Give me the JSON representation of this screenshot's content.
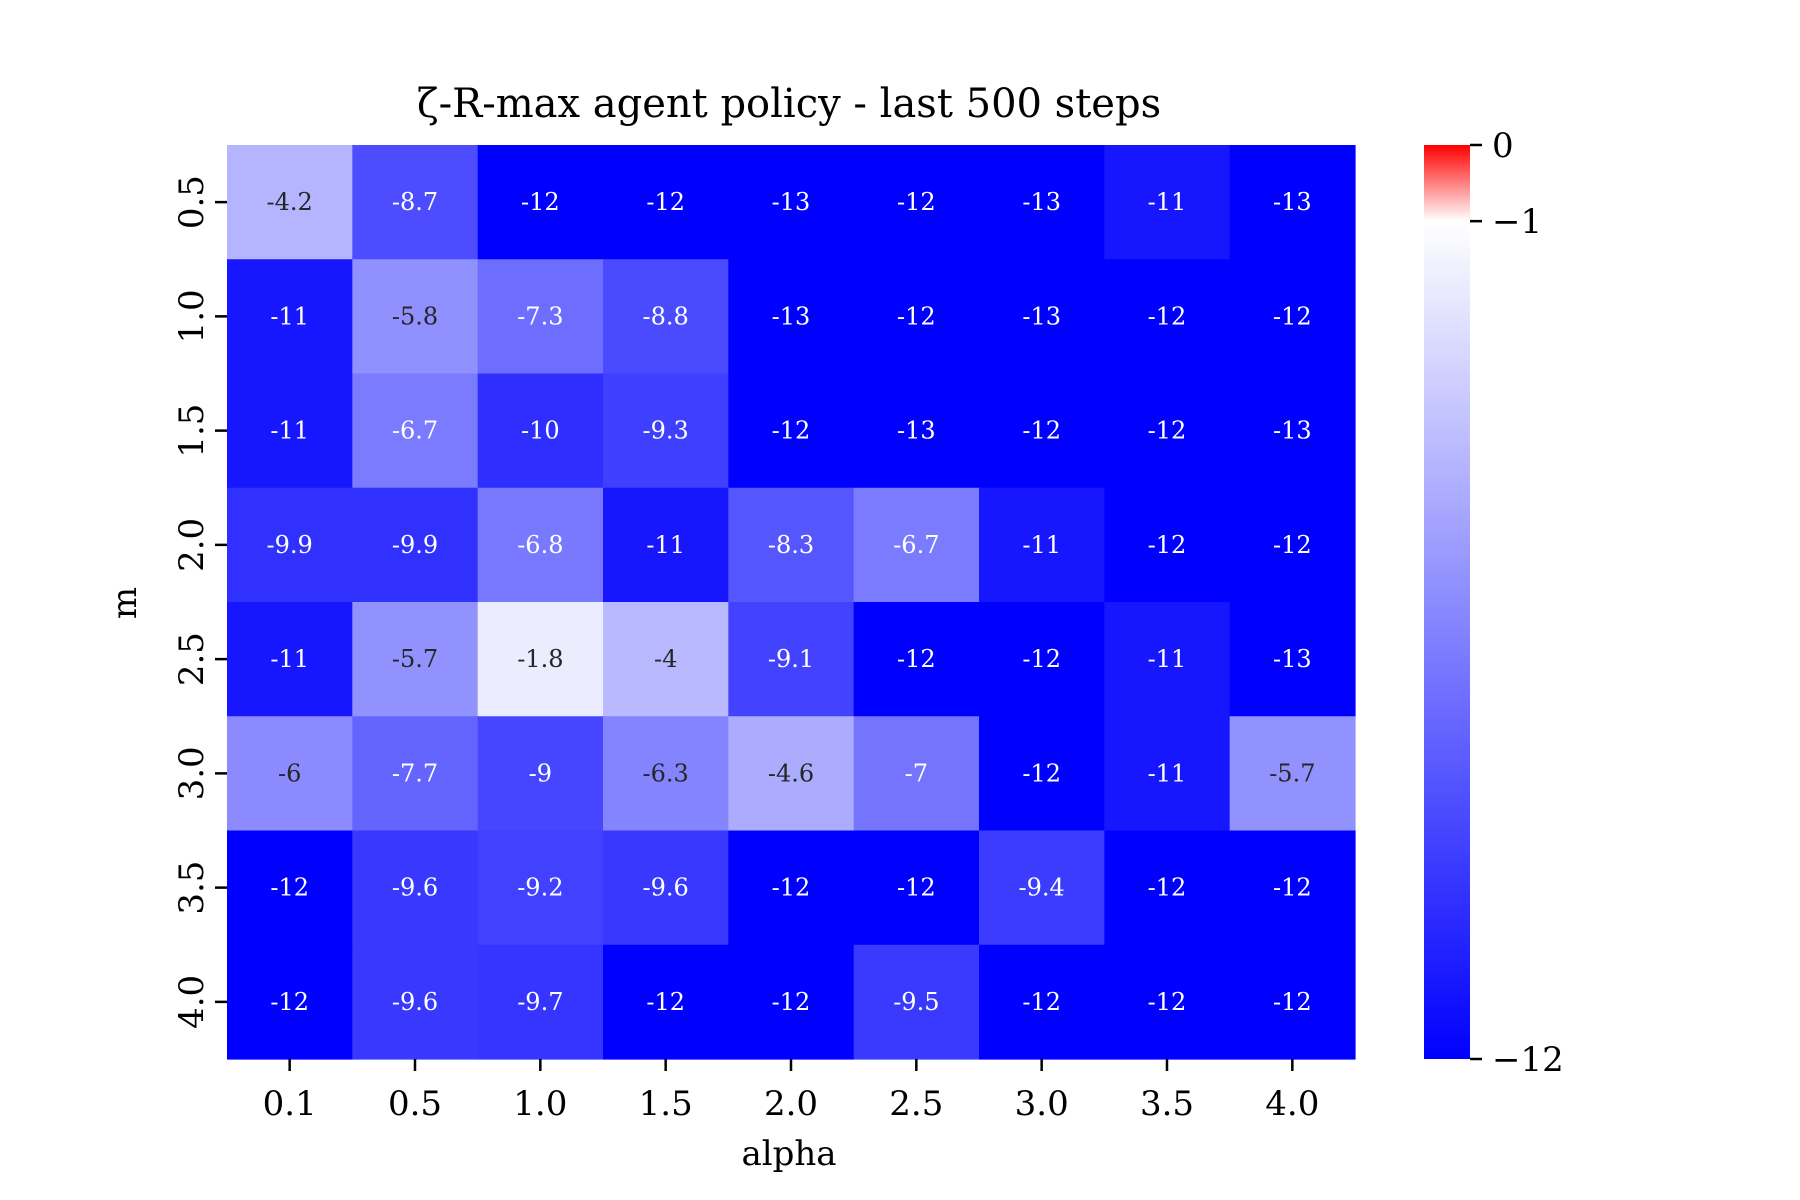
{
  "chart_data": {
    "type": "heatmap",
    "title": "ζ-R-max agent policy - last 500 steps",
    "xlabel": "alpha",
    "ylabel": "m",
    "x_categories": [
      "0.1",
      "0.5",
      "1.0",
      "1.5",
      "2.0",
      "2.5",
      "3.0",
      "3.5",
      "4.0"
    ],
    "y_categories": [
      "0.5",
      "1.0",
      "1.5",
      "2.0",
      "2.5",
      "3.0",
      "3.5",
      "4.0"
    ],
    "values": [
      [
        -4.2,
        -8.7,
        -12,
        -12,
        -13,
        -12,
        -13,
        -11,
        -13
      ],
      [
        -11,
        -5.8,
        -7.3,
        -8.8,
        -13,
        -12,
        -13,
        -12,
        -12
      ],
      [
        -11,
        -6.7,
        -10,
        -9.3,
        -12,
        -13,
        -12,
        -12,
        -13
      ],
      [
        -9.9,
        -9.9,
        -6.8,
        -11,
        -8.3,
        -6.7,
        -11,
        -12,
        -12
      ],
      [
        -11,
        -5.7,
        -1.8,
        -4,
        -9.1,
        -12,
        -12,
        -11,
        -13
      ],
      [
        -6,
        -7.7,
        -9,
        -6.3,
        -4.6,
        -7,
        -12,
        -11,
        -5.7
      ],
      [
        -12,
        -9.6,
        -9.2,
        -9.6,
        -12,
        -12,
        -9.4,
        -12,
        -12
      ],
      [
        -12,
        -9.6,
        -9.7,
        -12,
        -12,
        -9.5,
        -12,
        -12,
        -12
      ]
    ],
    "colorbar": {
      "ticks": [
        "0",
        "−1",
        "−12"
      ],
      "vmin": -12,
      "vcenter": -1,
      "vmax": 0,
      "colors": {
        "low": "#0000ff",
        "mid": "#ffffff",
        "high": "#ff0000"
      }
    }
  }
}
